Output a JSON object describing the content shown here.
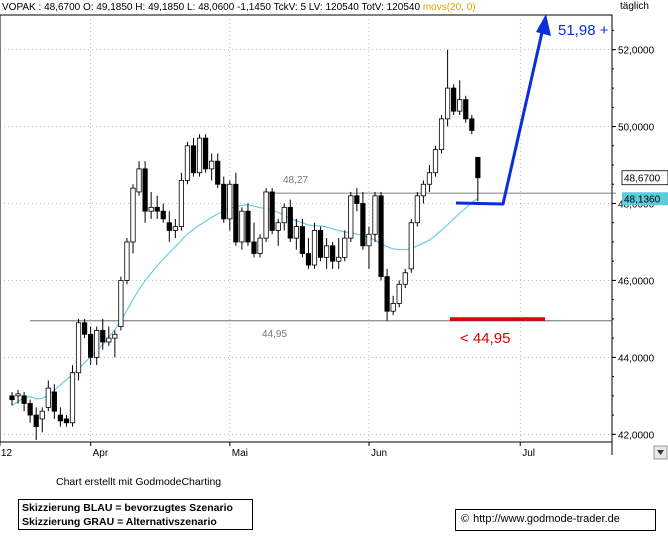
{
  "header": {
    "symbol": "VOPAK",
    "last_text": "48,6700",
    "open_text": "49,1850",
    "high_text": "49,1850",
    "low_text": "48,0600",
    "change_text": "-1,1450",
    "tckv_text": "5",
    "lv_text": "120540",
    "totv_text": "120540",
    "indicator_label": "movs(20, 0)",
    "frequency": "täglich"
  },
  "credit": "Chart erstellt mit GodmodeCharting",
  "legend": {
    "line1": "Skizzierung BLAU = bevorzugtes Szenario",
    "line2": "Skizzierung GRAU = Alternativszenario"
  },
  "url": "http://www.godmode-trader.de",
  "colors": {
    "up": "#ffffff",
    "down": "#000000",
    "ma": "#5ecbdc",
    "blue_scenario": "#0a2fd8",
    "red_line": "#e00000",
    "grid": "#808080"
  },
  "chart_data": {
    "type": "candlestick",
    "ylim": [
      41.8,
      52.9
    ],
    "y_ticks": [
      "42,0000",
      "44,0000",
      "46,0000",
      "48,0000",
      "50,0000",
      "52,0000"
    ],
    "y_tick_values": [
      42,
      44,
      46,
      48,
      50,
      52
    ],
    "x_tick_labels": [
      "12",
      "Apr",
      "Mai",
      "Jun",
      "Jul"
    ],
    "last_price_label": "48,6700",
    "last_price": 48.67,
    "ma_label": "48,1360",
    "ma_value": 48.136,
    "horizontal_levels": [
      {
        "value": 48.27,
        "label": "48,27"
      },
      {
        "value": 44.95,
        "label": "44,95"
      }
    ],
    "annotations": [
      {
        "text": "51,98 +",
        "color": "#0a2fd8"
      },
      {
        "text": "< 44,95",
        "color": "#e00000"
      }
    ],
    "candles": [
      {
        "o": 43.0,
        "h": 43.1,
        "l": 42.75,
        "c": 42.9
      },
      {
        "o": 43.0,
        "h": 43.15,
        "l": 42.8,
        "c": 43.05
      },
      {
        "o": 43.0,
        "h": 43.1,
        "l": 42.6,
        "c": 42.8
      },
      {
        "o": 42.8,
        "h": 42.9,
        "l": 42.3,
        "c": 42.5
      },
      {
        "o": 42.5,
        "h": 42.7,
        "l": 41.85,
        "c": 42.2
      },
      {
        "o": 42.4,
        "h": 42.7,
        "l": 42.05,
        "c": 42.6
      },
      {
        "o": 42.7,
        "h": 43.4,
        "l": 42.6,
        "c": 43.2
      },
      {
        "o": 43.1,
        "h": 43.3,
        "l": 42.4,
        "c": 42.6
      },
      {
        "o": 42.5,
        "h": 42.7,
        "l": 42.2,
        "c": 42.35
      },
      {
        "o": 42.4,
        "h": 42.5,
        "l": 42.2,
        "c": 42.3
      },
      {
        "o": 42.3,
        "h": 43.8,
        "l": 42.2,
        "c": 43.6
      },
      {
        "o": 43.6,
        "h": 45.0,
        "l": 43.4,
        "c": 44.9
      },
      {
        "o": 44.9,
        "h": 45.0,
        "l": 44.5,
        "c": 44.6
      },
      {
        "o": 44.6,
        "h": 44.8,
        "l": 43.8,
        "c": 44.0
      },
      {
        "o": 44.0,
        "h": 44.8,
        "l": 43.8,
        "c": 44.7
      },
      {
        "o": 44.7,
        "h": 45.0,
        "l": 44.2,
        "c": 44.4
      },
      {
        "o": 44.4,
        "h": 44.8,
        "l": 44.3,
        "c": 44.5
      },
      {
        "o": 44.5,
        "h": 44.7,
        "l": 44.0,
        "c": 44.6
      },
      {
        "o": 44.8,
        "h": 46.1,
        "l": 44.7,
        "c": 46.0
      },
      {
        "o": 46.0,
        "h": 47.1,
        "l": 45.9,
        "c": 47.0
      },
      {
        "o": 47.0,
        "h": 48.5,
        "l": 46.7,
        "c": 48.4
      },
      {
        "o": 48.3,
        "h": 49.1,
        "l": 48.2,
        "c": 48.9
      },
      {
        "o": 48.9,
        "h": 49.1,
        "l": 47.5,
        "c": 47.8
      },
      {
        "o": 47.8,
        "h": 48.3,
        "l": 47.6,
        "c": 47.9
      },
      {
        "o": 47.9,
        "h": 48.2,
        "l": 47.6,
        "c": 47.8
      },
      {
        "o": 47.8,
        "h": 48.0,
        "l": 47.5,
        "c": 47.6
      },
      {
        "o": 47.5,
        "h": 47.8,
        "l": 47.0,
        "c": 47.3
      },
      {
        "o": 47.3,
        "h": 47.6,
        "l": 47.1,
        "c": 47.4
      },
      {
        "o": 47.4,
        "h": 48.8,
        "l": 47.3,
        "c": 48.6
      },
      {
        "o": 48.6,
        "h": 49.6,
        "l": 48.5,
        "c": 49.5
      },
      {
        "o": 49.5,
        "h": 49.7,
        "l": 48.7,
        "c": 48.8
      },
      {
        "o": 48.8,
        "h": 49.8,
        "l": 48.7,
        "c": 49.7
      },
      {
        "o": 49.7,
        "h": 49.8,
        "l": 48.8,
        "c": 48.9
      },
      {
        "o": 48.9,
        "h": 49.3,
        "l": 48.6,
        "c": 49.1
      },
      {
        "o": 49.1,
        "h": 49.3,
        "l": 48.4,
        "c": 48.5
      },
      {
        "o": 48.5,
        "h": 48.7,
        "l": 47.5,
        "c": 47.6
      },
      {
        "o": 47.6,
        "h": 48.6,
        "l": 47.3,
        "c": 48.5
      },
      {
        "o": 48.5,
        "h": 48.8,
        "l": 46.9,
        "c": 47.0
      },
      {
        "o": 47.0,
        "h": 47.9,
        "l": 46.8,
        "c": 47.8
      },
      {
        "o": 47.8,
        "h": 48.0,
        "l": 46.9,
        "c": 47.0
      },
      {
        "o": 47.0,
        "h": 47.5,
        "l": 46.6,
        "c": 46.7
      },
      {
        "o": 46.7,
        "h": 47.2,
        "l": 46.6,
        "c": 47.1
      },
      {
        "o": 47.1,
        "h": 48.4,
        "l": 47.0,
        "c": 48.3
      },
      {
        "o": 48.3,
        "h": 48.4,
        "l": 47.2,
        "c": 47.3
      },
      {
        "o": 47.3,
        "h": 47.6,
        "l": 46.9,
        "c": 47.5
      },
      {
        "o": 47.5,
        "h": 48.0,
        "l": 47.3,
        "c": 47.9
      },
      {
        "o": 47.9,
        "h": 48.1,
        "l": 47.0,
        "c": 47.1
      },
      {
        "o": 47.1,
        "h": 47.6,
        "l": 46.8,
        "c": 47.4
      },
      {
        "o": 47.4,
        "h": 47.6,
        "l": 46.6,
        "c": 46.7
      },
      {
        "o": 46.7,
        "h": 47.1,
        "l": 46.3,
        "c": 46.4
      },
      {
        "o": 46.4,
        "h": 47.5,
        "l": 46.3,
        "c": 47.3
      },
      {
        "o": 47.3,
        "h": 47.4,
        "l": 46.5,
        "c": 46.6
      },
      {
        "o": 46.6,
        "h": 47.1,
        "l": 46.3,
        "c": 46.9
      },
      {
        "o": 46.9,
        "h": 47.0,
        "l": 46.3,
        "c": 46.5
      },
      {
        "o": 46.5,
        "h": 47.1,
        "l": 46.3,
        "c": 46.6
      },
      {
        "o": 46.6,
        "h": 47.3,
        "l": 46.5,
        "c": 47.1
      },
      {
        "o": 47.1,
        "h": 48.3,
        "l": 47.0,
        "c": 48.2
      },
      {
        "o": 48.2,
        "h": 48.4,
        "l": 47.8,
        "c": 48.0
      },
      {
        "o": 48.0,
        "h": 48.3,
        "l": 46.8,
        "c": 46.9
      },
      {
        "o": 46.9,
        "h": 47.4,
        "l": 46.3,
        "c": 47.2
      },
      {
        "o": 47.2,
        "h": 48.3,
        "l": 47.0,
        "c": 48.2
      },
      {
        "o": 48.2,
        "h": 48.3,
        "l": 46.0,
        "c": 46.1
      },
      {
        "o": 46.1,
        "h": 46.3,
        "l": 44.95,
        "c": 45.2
      },
      {
        "o": 45.2,
        "h": 45.6,
        "l": 45.1,
        "c": 45.4
      },
      {
        "o": 45.4,
        "h": 46.0,
        "l": 45.3,
        "c": 45.9
      },
      {
        "o": 45.9,
        "h": 46.3,
        "l": 45.8,
        "c": 46.2
      },
      {
        "o": 46.3,
        "h": 47.6,
        "l": 46.2,
        "c": 47.5
      },
      {
        "o": 47.5,
        "h": 48.3,
        "l": 47.4,
        "c": 48.2
      },
      {
        "o": 48.2,
        "h": 48.6,
        "l": 48.0,
        "c": 48.5
      },
      {
        "o": 48.5,
        "h": 49.0,
        "l": 48.3,
        "c": 48.8
      },
      {
        "o": 48.8,
        "h": 49.5,
        "l": 48.7,
        "c": 49.4
      },
      {
        "o": 49.4,
        "h": 50.3,
        "l": 49.3,
        "c": 50.2
      },
      {
        "o": 50.2,
        "h": 52.0,
        "l": 50.0,
        "c": 51.0
      },
      {
        "o": 51.0,
        "h": 51.1,
        "l": 50.3,
        "c": 50.4
      },
      {
        "o": 50.4,
        "h": 51.2,
        "l": 50.3,
        "c": 50.7
      },
      {
        "o": 50.7,
        "h": 50.8,
        "l": 50.1,
        "c": 50.2
      },
      {
        "o": 50.2,
        "h": 50.3,
        "l": 49.8,
        "c": 49.9
      },
      {
        "o": 49.2,
        "h": 49.2,
        "l": 48.06,
        "c": 48.67
      }
    ],
    "ma": [
      42.75,
      42.85,
      42.95,
      42.98,
      42.92,
      42.93,
      43.03,
      43.15,
      43.28,
      43.42,
      43.56,
      43.7,
      43.86,
      44.02,
      44.17,
      44.33,
      44.52,
      44.72,
      44.96,
      45.22,
      45.5,
      45.77,
      45.99,
      46.19,
      46.38,
      46.56,
      46.72,
      46.88,
      47.04,
      47.21,
      47.33,
      47.44,
      47.54,
      47.64,
      47.73,
      47.8,
      47.88,
      47.91,
      47.95,
      47.97,
      47.93,
      47.89,
      47.87,
      47.83,
      47.77,
      47.69,
      47.61,
      47.55,
      47.5,
      47.44,
      47.42,
      47.42,
      47.39,
      47.34,
      47.3,
      47.26,
      47.25,
      47.2,
      47.17,
      47.12,
      47.05,
      46.95,
      46.88,
      46.82,
      46.8,
      46.8,
      46.83,
      46.9,
      46.97,
      47.05,
      47.17,
      47.31,
      47.45,
      47.6,
      47.75,
      47.88,
      48.02,
      48.136
    ]
  }
}
